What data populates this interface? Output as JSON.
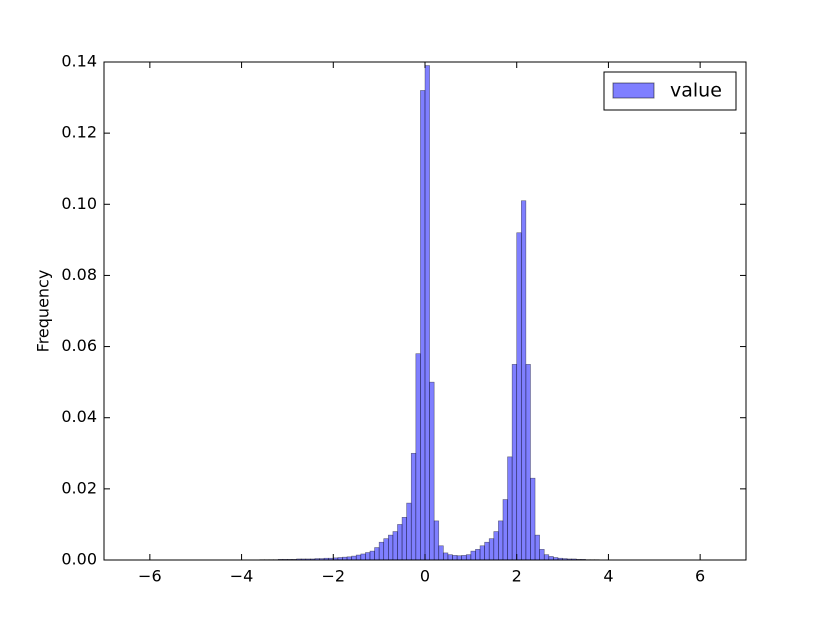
{
  "chart_data": {
    "type": "histogram",
    "y_label": "Frequency",
    "bins": [
      -4,
      -3.9,
      -3.8,
      -3.7,
      -3.6,
      -3.5,
      -3.4,
      -3.3,
      -3.2,
      -3.1,
      -3,
      -2.9,
      -2.8,
      -2.7,
      -2.6,
      -2.5,
      -2.4,
      -2.3,
      -2.2,
      -2.1,
      -2,
      -1.9,
      -1.8,
      -1.7,
      -1.6,
      -1.5,
      -1.4,
      -1.3,
      -1.2,
      -1.1,
      -1,
      -0.9,
      -0.8,
      -0.7,
      -0.6,
      -0.5,
      -0.4,
      -0.3,
      -0.2,
      -0.1,
      0,
      0.1,
      0.2,
      0.3,
      0.4,
      0.5,
      0.6,
      0.7,
      0.8,
      0.9,
      1,
      1.1,
      1.2,
      1.3,
      1.4,
      1.5,
      1.6,
      1.7,
      1.8,
      1.9,
      2,
      2.1,
      2.2,
      2.3,
      2.4,
      2.5,
      2.6,
      2.7,
      2.8,
      2.9,
      3,
      3.1,
      3.2,
      3.3,
      3.4,
      3.5,
      3.6,
      3.7,
      3.8,
      3.9,
      4
    ],
    "series": [
      {
        "name": "value",
        "color": "#0000ff",
        "values": [
          0,
          0,
          0,
          0,
          0.0001,
          0.0001,
          0.0001,
          0.0001,
          0.0002,
          0.0002,
          0.0002,
          0.0002,
          0.0003,
          0.0003,
          0.0003,
          0.0003,
          0.0004,
          0.0004,
          0.0005,
          0.0005,
          0.0006,
          0.0007,
          0.0008,
          0.0009,
          0.0011,
          0.0014,
          0.0017,
          0.0021,
          0.0025,
          0.0035,
          0.005,
          0.006,
          0.007,
          0.008,
          0.01,
          0.012,
          0.016,
          0.03,
          0.058,
          0.132,
          0.139,
          0.05,
          0.011,
          0.004,
          0.002,
          0.0015,
          0.0013,
          0.0012,
          0.0013,
          0.0015,
          0.0025,
          0.003,
          0.004,
          0.005,
          0.006,
          0.008,
          0.011,
          0.017,
          0.029,
          0.055,
          0.092,
          0.101,
          0.055,
          0.023,
          0.007,
          0.003,
          0.0015,
          0.001,
          0.0007,
          0.0005,
          0.0004,
          0.0003,
          0.0003,
          0.0002,
          0.0002,
          0.0001,
          0.0001,
          0.0001,
          0,
          0
        ]
      }
    ],
    "xlim": [
      -7,
      7
    ],
    "ylim": [
      0,
      0.14
    ],
    "xticks": [
      {
        "value": -6,
        "label": "−6"
      },
      {
        "value": -4,
        "label": "−4"
      },
      {
        "value": -2,
        "label": "−2"
      },
      0,
      2,
      4,
      6
    ],
    "yticks": [
      {
        "value": 0,
        "label": "0.00"
      },
      {
        "value": 0.02,
        "label": "0.02"
      },
      {
        "value": 0.04,
        "label": "0.04"
      },
      {
        "value": 0.06,
        "label": "0.06"
      },
      {
        "value": 0.08,
        "label": "0.08"
      },
      {
        "value": 0.1,
        "label": "0.10"
      },
      {
        "value": 0.12,
        "label": "0.12"
      },
      {
        "value": 0.14,
        "label": "0.14"
      }
    ],
    "legend": "upper right"
  }
}
